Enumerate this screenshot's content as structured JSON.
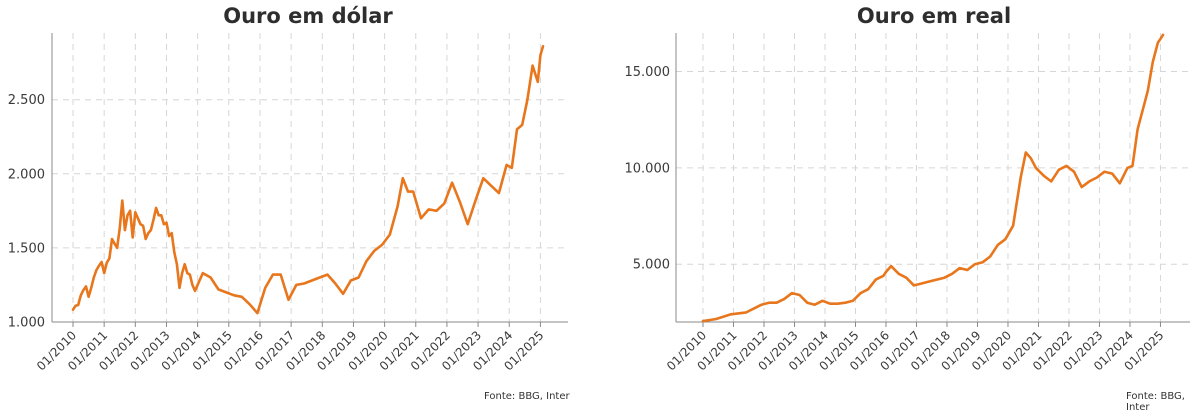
{
  "chart_data": [
    {
      "type": "line",
      "title": "Ouro em dólar",
      "source": "Fonte: BBG, Inter",
      "xlabel": "",
      "ylabel": "",
      "x_range": [
        "2010-01",
        "2025-02"
      ],
      "ylim": [
        1000,
        2950
      ],
      "y_ticks": [
        1000,
        1500,
        2000,
        2500
      ],
      "y_tick_labels": [
        "1.000",
        "1.500",
        "2.000",
        "2.500"
      ],
      "x_tick_labels": [
        "01/2010",
        "01/2011",
        "01/2012",
        "01/2013",
        "01/2014",
        "01/2015",
        "01/2016",
        "01/2017",
        "01/2018",
        "01/2019",
        "01/2020",
        "01/2021",
        "01/2022",
        "01/2023",
        "01/2024",
        "01/2025"
      ],
      "grid": true,
      "line_color": "#e8761c",
      "series": [
        {
          "x": [
            "2010-01",
            "2010-02",
            "2010-03",
            "2010-04",
            "2010-05",
            "2010-06",
            "2010-07",
            "2010-08",
            "2010-09",
            "2010-10",
            "2010-11",
            "2010-12",
            "2011-01",
            "2011-02",
            "2011-03",
            "2011-04",
            "2011-05",
            "2011-06",
            "2011-07",
            "2011-08",
            "2011-09",
            "2011-10",
            "2011-11",
            "2011-12",
            "2012-01",
            "2012-02",
            "2012-03",
            "2012-04",
            "2012-05",
            "2012-06",
            "2012-07",
            "2012-08",
            "2012-09",
            "2012-10",
            "2012-11",
            "2012-12",
            "2013-01",
            "2013-02",
            "2013-03",
            "2013-04",
            "2013-05",
            "2013-06",
            "2013-07",
            "2013-08",
            "2013-09",
            "2013-10",
            "2013-11",
            "2013-12",
            "2014-03",
            "2014-06",
            "2014-09",
            "2014-12",
            "2015-03",
            "2015-06",
            "2015-09",
            "2015-12",
            "2016-03",
            "2016-06",
            "2016-09",
            "2016-12",
            "2017-03",
            "2017-06",
            "2017-09",
            "2017-12",
            "2018-03",
            "2018-06",
            "2018-09",
            "2018-12",
            "2019-03",
            "2019-06",
            "2019-09",
            "2019-12",
            "2020-03",
            "2020-06",
            "2020-08",
            "2020-10",
            "2020-12",
            "2021-03",
            "2021-06",
            "2021-09",
            "2021-12",
            "2022-03",
            "2022-06",
            "2022-09",
            "2022-12",
            "2023-03",
            "2023-06",
            "2023-09",
            "2023-12",
            "2024-02",
            "2024-04",
            "2024-06",
            "2024-08",
            "2024-10",
            "2024-12",
            "2025-01",
            "2025-02"
          ],
          "y": [
            1083,
            1110,
            1115,
            1180,
            1215,
            1240,
            1170,
            1230,
            1300,
            1350,
            1380,
            1405,
            1330,
            1400,
            1430,
            1560,
            1530,
            1500,
            1630,
            1820,
            1620,
            1720,
            1750,
            1570,
            1740,
            1700,
            1660,
            1650,
            1560,
            1600,
            1620,
            1690,
            1770,
            1720,
            1720,
            1660,
            1670,
            1580,
            1600,
            1470,
            1390,
            1230,
            1330,
            1390,
            1330,
            1320,
            1250,
            1210,
            1330,
            1300,
            1220,
            1200,
            1180,
            1170,
            1120,
            1060,
            1230,
            1320,
            1320,
            1150,
            1250,
            1260,
            1280,
            1300,
            1320,
            1260,
            1190,
            1280,
            1300,
            1410,
            1480,
            1520,
            1590,
            1780,
            1970,
            1880,
            1880,
            1700,
            1760,
            1750,
            1800,
            1940,
            1810,
            1660,
            1820,
            1970,
            1920,
            1870,
            2060,
            2040,
            2300,
            2330,
            2500,
            2730,
            2620,
            2800,
            2860
          ]
        }
      ]
    },
    {
      "type": "line",
      "title": "Ouro em real",
      "source": "Fonte: BBG, Inter",
      "xlabel": "",
      "ylabel": "",
      "x_range": [
        "2010-01",
        "2025-02"
      ],
      "ylim": [
        2000,
        17000
      ],
      "y_ticks": [
        5000,
        10000,
        15000
      ],
      "y_tick_labels": [
        "5.000",
        "10.000",
        "15.000"
      ],
      "x_tick_labels": [
        "01/2010",
        "01/2011",
        "01/2012",
        "01/2013",
        "01/2014",
        "01/2015",
        "01/2016",
        "01/2017",
        "01/2018",
        "01/2019",
        "01/2020",
        "01/2021",
        "01/2022",
        "01/2023",
        "01/2024",
        "01/2025"
      ],
      "grid": true,
      "line_color": "#e8761c",
      "series": [
        {
          "x": [
            "2010-01",
            "2010-06",
            "2010-12",
            "2011-06",
            "2011-12",
            "2012-03",
            "2012-06",
            "2012-09",
            "2012-12",
            "2013-03",
            "2013-06",
            "2013-09",
            "2013-12",
            "2014-03",
            "2014-06",
            "2014-09",
            "2014-12",
            "2015-03",
            "2015-06",
            "2015-09",
            "2015-12",
            "2016-01",
            "2016-03",
            "2016-06",
            "2016-09",
            "2016-12",
            "2017-03",
            "2017-06",
            "2017-09",
            "2017-12",
            "2018-03",
            "2018-06",
            "2018-09",
            "2018-12",
            "2019-03",
            "2019-06",
            "2019-09",
            "2019-12",
            "2020-03",
            "2020-06",
            "2020-08",
            "2020-10",
            "2020-12",
            "2021-03",
            "2021-06",
            "2021-09",
            "2021-12",
            "2022-03",
            "2022-06",
            "2022-09",
            "2022-12",
            "2023-03",
            "2023-06",
            "2023-09",
            "2023-12",
            "2024-02",
            "2024-04",
            "2024-06",
            "2024-08",
            "2024-10",
            "2024-12",
            "2025-01",
            "2025-02"
          ],
          "y": [
            2050,
            2150,
            2400,
            2500,
            2900,
            3000,
            3000,
            3200,
            3500,
            3400,
            3000,
            2900,
            3100,
            2950,
            2950,
            3000,
            3100,
            3500,
            3700,
            4200,
            4400,
            4600,
            4900,
            4500,
            4300,
            3900,
            4000,
            4100,
            4200,
            4300,
            4500,
            4800,
            4700,
            5000,
            5100,
            5400,
            6000,
            6300,
            7000,
            9500,
            10800,
            10500,
            10000,
            9600,
            9300,
            9900,
            10100,
            9800,
            9000,
            9300,
            9500,
            9800,
            9700,
            9200,
            10000,
            10100,
            12000,
            13000,
            14000,
            15500,
            16500,
            16700,
            16900
          ]
        }
      ]
    }
  ]
}
